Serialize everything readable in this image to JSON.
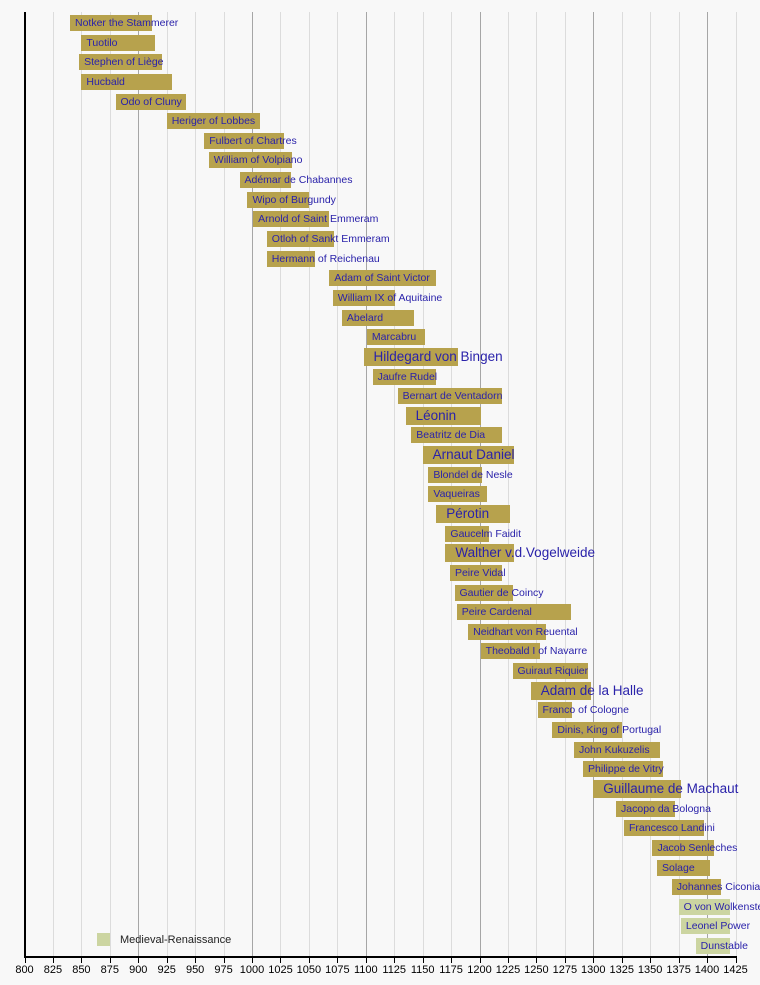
{
  "chart_data": {
    "type": "bar",
    "subtype": "horizontal-timeline",
    "title": "",
    "xlabel": "",
    "ylabel": "",
    "axis": {
      "min_year": 800,
      "max_year": 1430,
      "tick_interval": 25,
      "tick_labels": [
        "800",
        "825",
        "850",
        "875",
        "900",
        "925",
        "950",
        "975",
        "1000",
        "1025",
        "1050",
        "1075",
        "1100",
        "1125",
        "1150",
        "1175",
        "1200",
        "1225",
        "1250",
        "1275",
        "1300",
        "1325",
        "1350",
        "1375",
        "1400",
        "1425"
      ],
      "grid": "vertical, light every 25 years, darker on century years"
    },
    "colors": {
      "medieval_bar": "#b7a24d",
      "medieval_renaissance_bar": "#ccd5a1",
      "label_text": "#2a22aa",
      "axis": "#000000",
      "background": "#f8f8f8",
      "gridline": "#dcdcdc",
      "gridline_century": "#a6a6a6"
    },
    "legend": {
      "position": "bottom-left",
      "items": [
        {
          "label": "Medieval-Renaissance",
          "color": "#ccd5a1"
        }
      ]
    },
    "composers": [
      {
        "name": "Notker the Stammerer",
        "start": 840,
        "end": 912,
        "emphasis": false,
        "period": "medieval"
      },
      {
        "name": "Tuotilo",
        "start": 850,
        "end": 915,
        "emphasis": false,
        "period": "medieval"
      },
      {
        "name": "Stephen of Liège",
        "start": 848,
        "end": 921,
        "emphasis": false,
        "period": "medieval"
      },
      {
        "name": "Hucbald",
        "start": 850,
        "end": 930,
        "emphasis": false,
        "period": "medieval"
      },
      {
        "name": "Odo of Cluny",
        "start": 880,
        "end": 942,
        "emphasis": false,
        "period": "medieval"
      },
      {
        "name": "Heriger of Lobbes",
        "start": 925,
        "end": 1007,
        "emphasis": false,
        "period": "medieval"
      },
      {
        "name": "Fulbert of Chartres",
        "start": 958,
        "end": 1028,
        "emphasis": false,
        "period": "medieval"
      },
      {
        "name": "William of Volpiano",
        "start": 962,
        "end": 1035,
        "emphasis": false,
        "period": "medieval"
      },
      {
        "name": "Adémar de Chabannes",
        "start": 989,
        "end": 1034,
        "emphasis": false,
        "period": "medieval"
      },
      {
        "name": "Wipo of Burgundy",
        "start": 996,
        "end": 1050,
        "emphasis": false,
        "period": "medieval"
      },
      {
        "name": "Arnold of Saint Emmeram",
        "start": 1001,
        "end": 1068,
        "emphasis": false,
        "period": "medieval"
      },
      {
        "name": "Otloh of Sankt Emmeram",
        "start": 1013,
        "end": 1072,
        "emphasis": false,
        "period": "medieval"
      },
      {
        "name": "Hermann of Reichenau",
        "start": 1013,
        "end": 1055,
        "emphasis": false,
        "period": "medieval"
      },
      {
        "name": "Adam of Saint Victor",
        "start": 1068,
        "end": 1162,
        "emphasis": false,
        "period": "medieval"
      },
      {
        "name": "William IX of Aquitaine",
        "start": 1071,
        "end": 1126,
        "emphasis": false,
        "period": "medieval"
      },
      {
        "name": "Abelard",
        "start": 1079,
        "end": 1142,
        "emphasis": false,
        "period": "medieval"
      },
      {
        "name": "Marcabru",
        "start": 1101,
        "end": 1152,
        "emphasis": false,
        "period": "medieval"
      },
      {
        "name": "Hildegard von Bingen",
        "start": 1098,
        "end": 1181,
        "emphasis": true,
        "period": "medieval"
      },
      {
        "name": "Jaufre Rudel",
        "start": 1106,
        "end": 1162,
        "emphasis": false,
        "period": "medieval"
      },
      {
        "name": "Bernart de Ventadorn",
        "start": 1128,
        "end": 1220,
        "emphasis": false,
        "period": "medieval"
      },
      {
        "name": "Léonin",
        "start": 1135,
        "end": 1201,
        "emphasis": true,
        "period": "medieval"
      },
      {
        "name": "Beatritz de Dia",
        "start": 1140,
        "end": 1220,
        "emphasis": false,
        "period": "medieval"
      },
      {
        "name": "Arnaut Daniel",
        "start": 1150,
        "end": 1230,
        "emphasis": true,
        "period": "medieval"
      },
      {
        "name": "Blondel de Nesle",
        "start": 1155,
        "end": 1202,
        "emphasis": false,
        "period": "medieval"
      },
      {
        "name": "Vaqueiras",
        "start": 1155,
        "end": 1207,
        "emphasis": false,
        "period": "medieval"
      },
      {
        "name": "Pérotin",
        "start": 1162,
        "end": 1227,
        "emphasis": true,
        "period": "medieval"
      },
      {
        "name": "Gaucelm Faidit",
        "start": 1170,
        "end": 1208,
        "emphasis": false,
        "period": "medieval"
      },
      {
        "name": "Walther v.d.Vogelweide",
        "start": 1170,
        "end": 1230,
        "emphasis": true,
        "period": "medieval"
      },
      {
        "name": "Peire Vidal",
        "start": 1174,
        "end": 1220,
        "emphasis": false,
        "period": "medieval"
      },
      {
        "name": "Gautier de Coincy",
        "start": 1178,
        "end": 1229,
        "emphasis": false,
        "period": "medieval"
      },
      {
        "name": "Peire Cardenal",
        "start": 1180,
        "end": 1280,
        "emphasis": false,
        "period": "medieval"
      },
      {
        "name": "Neidhart von Reuental",
        "start": 1190,
        "end": 1258,
        "emphasis": false,
        "period": "medieval"
      },
      {
        "name": "Theobald I of Navarre",
        "start": 1201,
        "end": 1253,
        "emphasis": false,
        "period": "medieval"
      },
      {
        "name": "Guiraut Riquier",
        "start": 1229,
        "end": 1295,
        "emphasis": false,
        "period": "medieval"
      },
      {
        "name": "Adam de la Halle",
        "start": 1245,
        "end": 1298,
        "emphasis": true,
        "period": "medieval"
      },
      {
        "name": "Franco of Cologne",
        "start": 1251,
        "end": 1281,
        "emphasis": false,
        "period": "medieval"
      },
      {
        "name": "Dinis, King of Portugal",
        "start": 1264,
        "end": 1325,
        "emphasis": false,
        "period": "medieval"
      },
      {
        "name": "John Kukuzelis",
        "start": 1283,
        "end": 1359,
        "emphasis": false,
        "period": "medieval"
      },
      {
        "name": "Philippe de Vitry",
        "start": 1291,
        "end": 1361,
        "emphasis": false,
        "period": "medieval"
      },
      {
        "name": "Guillaume de Machaut",
        "start": 1300,
        "end": 1377,
        "emphasis": true,
        "period": "medieval"
      },
      {
        "name": "Jacopo da Bologna",
        "start": 1320,
        "end": 1372,
        "emphasis": false,
        "period": "medieval"
      },
      {
        "name": "Francesco Landini",
        "start": 1327,
        "end": 1397,
        "emphasis": false,
        "period": "medieval"
      },
      {
        "name": "Jacob Senleches",
        "start": 1352,
        "end": 1406,
        "emphasis": false,
        "period": "medieval"
      },
      {
        "name": "Solage",
        "start": 1356,
        "end": 1403,
        "emphasis": false,
        "period": "medieval"
      },
      {
        "name": "Johannes Ciconia",
        "start": 1369,
        "end": 1412,
        "emphasis": false,
        "period": "medieval"
      },
      {
        "name": "O von Wolkenste",
        "start": 1375,
        "end": 1420,
        "emphasis": false,
        "period": "medieval-renaissance",
        "clipped_at_edge": true
      },
      {
        "name": "Leonel Power",
        "start": 1377,
        "end": 1420,
        "emphasis": false,
        "period": "medieval-renaissance",
        "clipped_at_edge": true
      },
      {
        "name": "Dunstable",
        "start": 1390,
        "end": 1420,
        "emphasis": false,
        "period": "medieval-renaissance",
        "clipped_at_edge": true
      }
    ]
  }
}
